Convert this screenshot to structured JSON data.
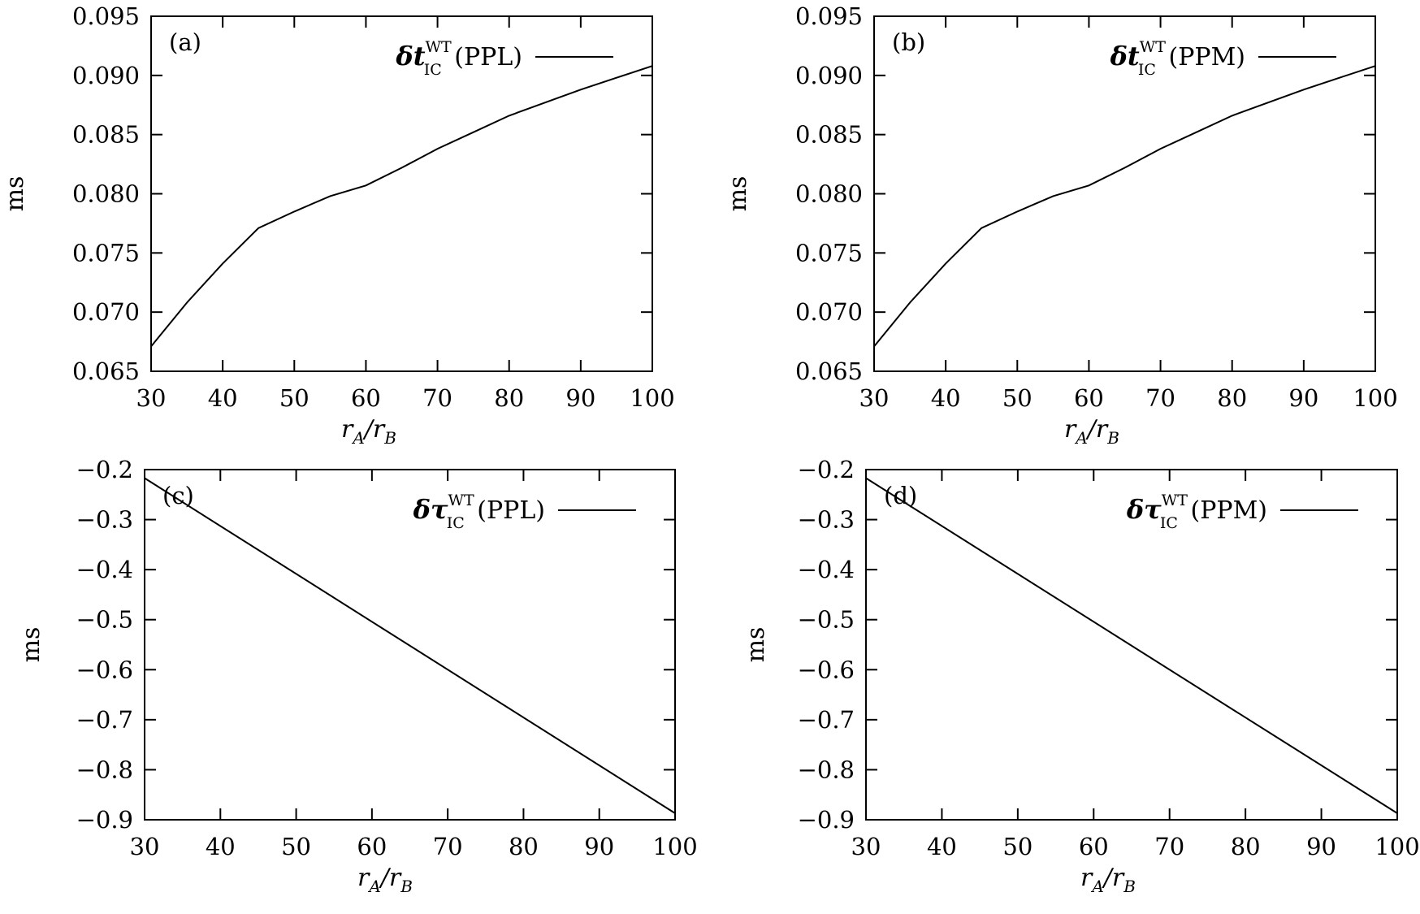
{
  "colors": {
    "background": "#ffffff",
    "ink": "#000000"
  },
  "chart_data": [
    {
      "type": "line",
      "panel_label": "(a)",
      "ylabel": "ms",
      "xlabel": {
        "main": "r",
        "sub1": "A",
        "slash": "/",
        "main2": "r",
        "sub2": "B"
      },
      "xlim": [
        30,
        100
      ],
      "ylim": [
        0.065,
        0.095
      ],
      "xticks": [
        30,
        40,
        50,
        60,
        70,
        80,
        90,
        100
      ],
      "xtick_labels": [
        "30",
        "40",
        "50",
        "60",
        "70",
        "80",
        "90",
        "100"
      ],
      "yticks": [
        0.065,
        0.07,
        0.075,
        0.08,
        0.085,
        0.09,
        0.095
      ],
      "ytick_labels": [
        "0.065",
        "0.070",
        "0.075",
        "0.080",
        "0.085",
        "0.090",
        "0.095"
      ],
      "grid": false,
      "legend_position": "top-right",
      "legend": {
        "symbol": "δt",
        "sup": "WT",
        "sub": "IC",
        "suffix": "(PPL)"
      },
      "series": [
        {
          "x": [
            30,
            35,
            40,
            45,
            50,
            55,
            60,
            65,
            70,
            75,
            80,
            85,
            90,
            95,
            100
          ],
          "y": [
            0.0671,
            0.0708,
            0.0741,
            0.0771,
            0.0785,
            0.0798,
            0.0807,
            0.0822,
            0.0838,
            0.0852,
            0.0866,
            0.0877,
            0.0888,
            0.0898,
            0.0908
          ]
        }
      ]
    },
    {
      "type": "line",
      "panel_label": "(b)",
      "ylabel": "ms",
      "xlabel": {
        "main": "r",
        "sub1": "A",
        "slash": "/",
        "main2": "r",
        "sub2": "B"
      },
      "xlim": [
        30,
        100
      ],
      "ylim": [
        0.065,
        0.095
      ],
      "xticks": [
        30,
        40,
        50,
        60,
        70,
        80,
        90,
        100
      ],
      "xtick_labels": [
        "30",
        "40",
        "50",
        "60",
        "70",
        "80",
        "90",
        "100"
      ],
      "yticks": [
        0.065,
        0.07,
        0.075,
        0.08,
        0.085,
        0.09,
        0.095
      ],
      "ytick_labels": [
        "0.065",
        "0.070",
        "0.075",
        "0.080",
        "0.085",
        "0.090",
        "0.095"
      ],
      "grid": false,
      "legend_position": "top-right",
      "legend": {
        "symbol": "δt",
        "sup": "WT",
        "sub": "IC",
        "suffix": "(PPM)"
      },
      "series": [
        {
          "x": [
            30,
            35,
            40,
            45,
            50,
            55,
            60,
            65,
            70,
            75,
            80,
            85,
            90,
            95,
            100
          ],
          "y": [
            0.0671,
            0.0708,
            0.0741,
            0.0771,
            0.0785,
            0.0798,
            0.0807,
            0.0822,
            0.0838,
            0.0852,
            0.0866,
            0.0877,
            0.0888,
            0.0898,
            0.0908
          ]
        }
      ]
    },
    {
      "type": "line",
      "panel_label": "(c)",
      "ylabel": "ms",
      "xlabel": {
        "main": "r",
        "sub1": "A",
        "slash": "/",
        "main2": "r",
        "sub2": "B"
      },
      "xlim": [
        30,
        100
      ],
      "ylim": [
        -0.9,
        -0.2
      ],
      "xticks": [
        30,
        40,
        50,
        60,
        70,
        80,
        90,
        100
      ],
      "xtick_labels": [
        "30",
        "40",
        "50",
        "60",
        "70",
        "80",
        "90",
        "100"
      ],
      "yticks": [
        -0.9,
        -0.8,
        -0.7,
        -0.6,
        -0.5,
        -0.4,
        -0.3,
        -0.2
      ],
      "ytick_labels": [
        "−0.9",
        "−0.8",
        "−0.7",
        "−0.6",
        "−0.5",
        "−0.4",
        "−0.3",
        "−0.2"
      ],
      "grid": false,
      "legend_position": "top-right",
      "legend": {
        "symbol": "δτ",
        "sup": "WT",
        "sub": "IC",
        "suffix": "(PPL)"
      },
      "series": [
        {
          "x": [
            30,
            100
          ],
          "y": [
            -0.217,
            -0.887
          ]
        }
      ]
    },
    {
      "type": "line",
      "panel_label": "(d)",
      "ylabel": "ms",
      "xlabel": {
        "main": "r",
        "sub1": "A",
        "slash": "/",
        "main2": "r",
        "sub2": "B"
      },
      "xlim": [
        30,
        100
      ],
      "ylim": [
        -0.9,
        -0.2
      ],
      "xticks": [
        30,
        40,
        50,
        60,
        70,
        80,
        90,
        100
      ],
      "xtick_labels": [
        "30",
        "40",
        "50",
        "60",
        "70",
        "80",
        "90",
        "100"
      ],
      "yticks": [
        -0.9,
        -0.8,
        -0.7,
        -0.6,
        -0.5,
        -0.4,
        -0.3,
        -0.2
      ],
      "ytick_labels": [
        "−0.9",
        "−0.8",
        "−0.7",
        "−0.6",
        "−0.5",
        "−0.4",
        "−0.3",
        "−0.2"
      ],
      "grid": false,
      "legend_position": "top-right",
      "legend": {
        "symbol": "δτ",
        "sup": "WT",
        "sub": "IC",
        "suffix": "(PPM)"
      },
      "series": [
        {
          "x": [
            30,
            100
          ],
          "y": [
            -0.217,
            -0.887
          ]
        }
      ]
    }
  ]
}
